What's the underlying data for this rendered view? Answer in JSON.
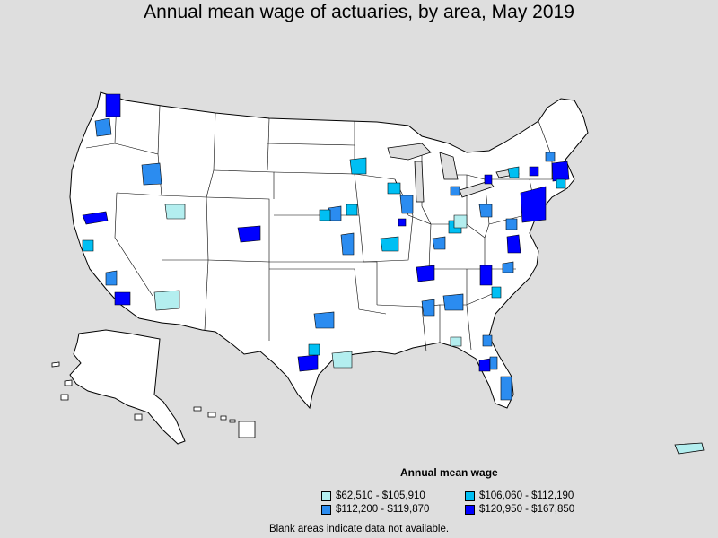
{
  "title": "Annual mean wage of actuaries, by area, May 2019",
  "legend": {
    "title": "Annual mean wage",
    "items": [
      {
        "label": "$62,510 - $105,910",
        "color": "#b3eeef"
      },
      {
        "label": "$106,060 - $112,190",
        "color": "#00bff3"
      },
      {
        "label": "$112,200 - $119,870",
        "color": "#2b8cf0"
      },
      {
        "label": "$120,950 - $167,850",
        "color": "#0000ff"
      }
    ]
  },
  "footnote": "Blank areas indicate data not available.",
  "colors": {
    "background": "#dedede",
    "land": "#ffffff",
    "border": "#000000"
  }
}
